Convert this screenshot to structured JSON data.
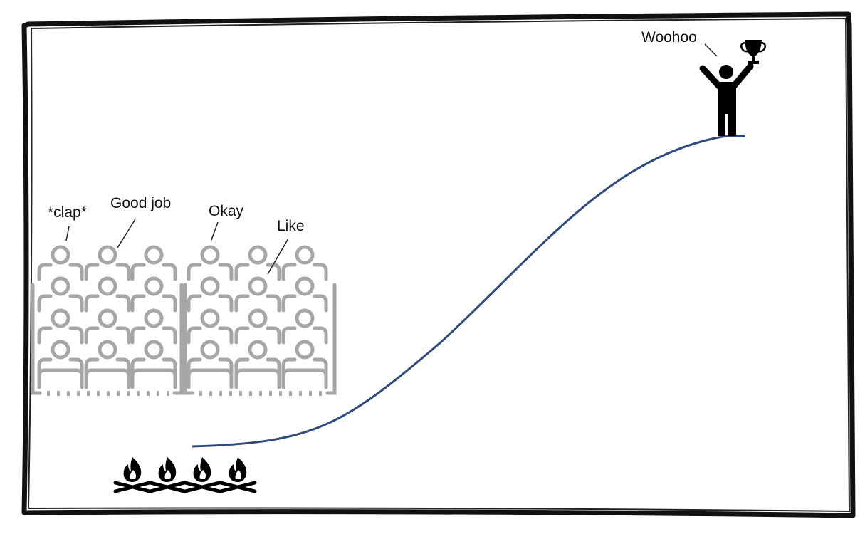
{
  "scene": {
    "winner_exclamation": "Woohoo",
    "audience_comments": [
      "*clap*",
      "Good job",
      "Okay",
      "Like"
    ]
  },
  "icons": {
    "frame": "hand-drawn-border",
    "audience": "seated-audience-icon",
    "winner": "person-raising-trophy-icon",
    "trophy": "trophy-icon",
    "campfire": "campfire-icon"
  },
  "colors": {
    "frame": "#111111",
    "curve": "#2f4b7c",
    "audience": "#a6a6a6",
    "figures": "#000000",
    "text": "#111111"
  }
}
